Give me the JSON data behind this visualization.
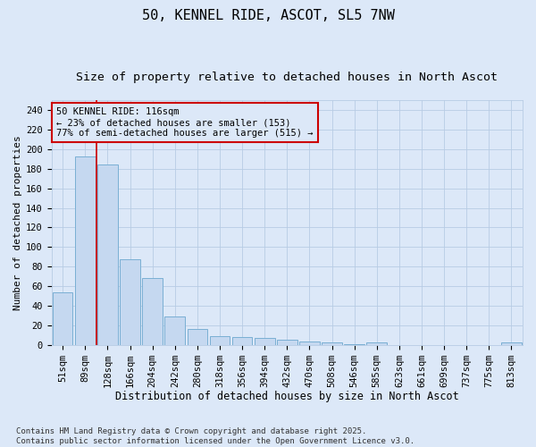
{
  "title": "50, KENNEL RIDE, ASCOT, SL5 7NW",
  "subtitle": "Size of property relative to detached houses in North Ascot",
  "xlabel": "Distribution of detached houses by size in North Ascot",
  "ylabel": "Number of detached properties",
  "categories": [
    "51sqm",
    "89sqm",
    "128sqm",
    "166sqm",
    "204sqm",
    "242sqm",
    "280sqm",
    "318sqm",
    "356sqm",
    "394sqm",
    "432sqm",
    "470sqm",
    "508sqm",
    "546sqm",
    "585sqm",
    "623sqm",
    "661sqm",
    "699sqm",
    "737sqm",
    "775sqm",
    "813sqm"
  ],
  "values": [
    54,
    193,
    184,
    87,
    68,
    29,
    16,
    9,
    8,
    7,
    5,
    3,
    2,
    1,
    2,
    0,
    0,
    0,
    0,
    0,
    2
  ],
  "bar_color": "#c5d8f0",
  "bar_edge_color": "#7aafd4",
  "grid_color": "#b8cce4",
  "bg_color": "#dce8f8",
  "vline_x": 1.5,
  "vline_color": "#cc0000",
  "annotation_text": "50 KENNEL RIDE: 116sqm\n← 23% of detached houses are smaller (153)\n77% of semi-detached houses are larger (515) →",
  "annotation_box_edge_color": "#cc0000",
  "annotation_box_face_color": "#dce8f8",
  "ylim": [
    0,
    250
  ],
  "yticks": [
    0,
    20,
    40,
    60,
    80,
    100,
    120,
    140,
    160,
    180,
    200,
    220,
    240
  ],
  "footnote": "Contains HM Land Registry data © Crown copyright and database right 2025.\nContains public sector information licensed under the Open Government Licence v3.0.",
  "title_fontsize": 11,
  "subtitle_fontsize": 9.5,
  "xlabel_fontsize": 8.5,
  "ylabel_fontsize": 8,
  "tick_fontsize": 7.5,
  "annotation_fontsize": 7.5,
  "footnote_fontsize": 6.5
}
